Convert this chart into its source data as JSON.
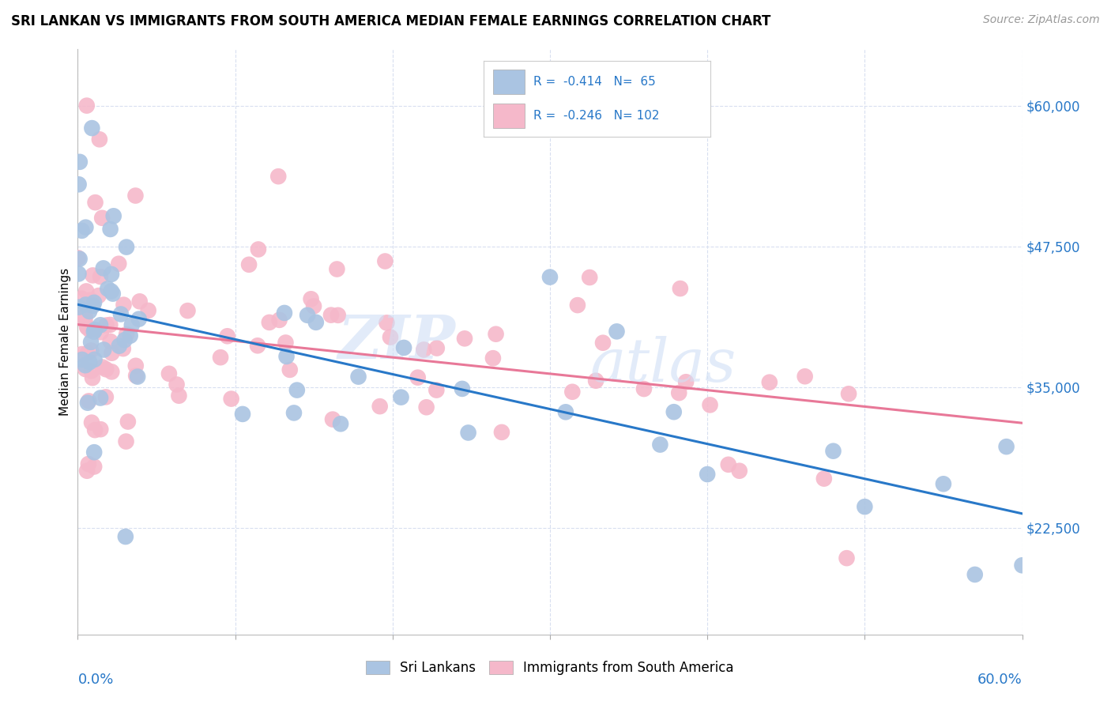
{
  "title": "SRI LANKAN VS IMMIGRANTS FROM SOUTH AMERICA MEDIAN FEMALE EARNINGS CORRELATION CHART",
  "source": "Source: ZipAtlas.com",
  "ylabel": "Median Female Earnings",
  "xlim": [
    0.0,
    0.6
  ],
  "ylim": [
    13000,
    65000
  ],
  "sri_lankan_color": "#aac4e2",
  "south_america_color": "#f5b8ca",
  "sri_lankan_line_color": "#2878c8",
  "south_america_line_color": "#e87898",
  "legend_R1": "-0.414",
  "legend_N1": "65",
  "legend_R2": "-0.246",
  "legend_N2": "102",
  "background_color": "#ffffff",
  "grid_color": "#d8dff0",
  "ytick_color": "#2878c8",
  "xtick_color": "#2878c8",
  "legend_text_color": "#2878c8",
  "watermark_color": "#d0dff5",
  "title_fontsize": 12,
  "source_fontsize": 10,
  "ytick_fontsize": 12,
  "xtick_fontsize": 13,
  "ylabel_fontsize": 11
}
